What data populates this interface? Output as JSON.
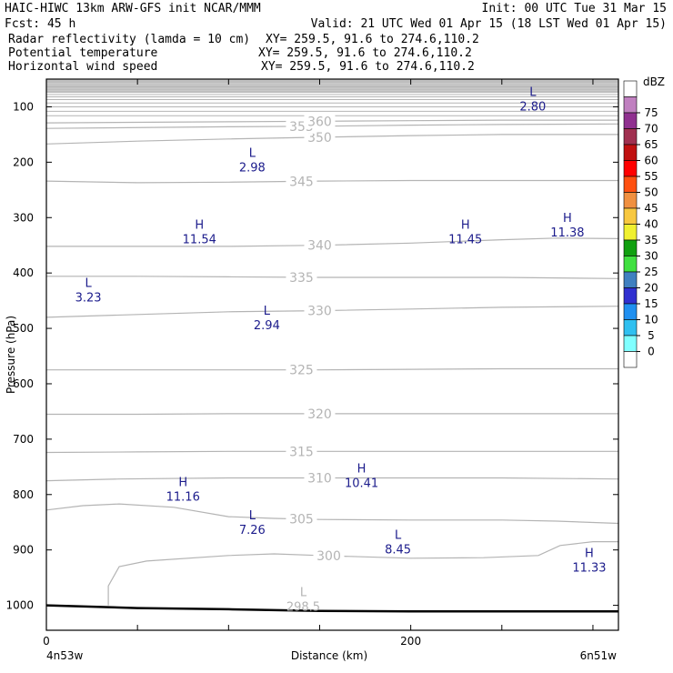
{
  "header": {
    "line1_left": "HAIC-HIWC 13km ARW-GFS init   NCAR/MMM",
    "line1_right": "Init: 00 UTC Tue 31 Mar 15",
    "line2_left": "Fcst:   45 h",
    "line2_right": "Valid: 21 UTC Wed 01 Apr 15 (18 LST Wed 01 Apr 15)",
    "fields": [
      {
        "name": "Radar reflectivity (lamda = 10 cm)",
        "xy": "XY= 259.5, 91.6 to 274.6,110.2",
        "color": "#000000"
      },
      {
        "name": "Potential temperature",
        "xy": "XY= 259.5, 91.6 to 274.6,110.2",
        "color": "#c8c8c8"
      },
      {
        "name": "Horizontal wind speed",
        "xy": "XY= 259.5, 91.6 to 274.6,110.2",
        "color": "#1c1c8c"
      }
    ]
  },
  "footer": {
    "left": "4n53w",
    "right": "6n51w"
  },
  "chart_data": {
    "type": "cross-section",
    "xlabel": "Distance (km)",
    "ylabel": "Pressure (hPa)",
    "xlim": [
      0,
      314
    ],
    "ylim": [
      1045,
      50
    ],
    "xticks": [
      0,
      200
    ],
    "yticks": [
      100,
      200,
      300,
      400,
      500,
      600,
      700,
      800,
      900,
      1000
    ],
    "ground_pressure": [
      [
        0,
        1000
      ],
      [
        50,
        1005
      ],
      [
        100,
        1007
      ],
      [
        150,
        1010
      ],
      [
        200,
        1011
      ],
      [
        250,
        1011
      ],
      [
        314,
        1011
      ]
    ],
    "theta_contours": [
      {
        "value": 300,
        "label_at": 155,
        "points": [
          [
            34,
            1000
          ],
          [
            34,
            965
          ],
          [
            40,
            930
          ],
          [
            55,
            920
          ],
          [
            100,
            910
          ],
          [
            125,
            907
          ],
          [
            150,
            910
          ],
          [
            200,
            915
          ],
          [
            240,
            914
          ],
          [
            270,
            910
          ],
          [
            282,
            892
          ],
          [
            300,
            885
          ],
          [
            314,
            885
          ]
        ]
      },
      {
        "value": 305,
        "points": [
          [
            0,
            828
          ],
          [
            20,
            820
          ],
          [
            40,
            817
          ],
          [
            70,
            823
          ],
          [
            100,
            840
          ],
          [
            125,
            843
          ],
          [
            150,
            845
          ],
          [
            200,
            846
          ],
          [
            250,
            846
          ],
          [
            280,
            848
          ],
          [
            314,
            852
          ]
        ]
      },
      {
        "value": 310,
        "points": [
          [
            0,
            775
          ],
          [
            40,
            772
          ],
          [
            100,
            770
          ],
          [
            150,
            770
          ],
          [
            200,
            770
          ],
          [
            250,
            770
          ],
          [
            314,
            772
          ]
        ]
      },
      {
        "value": 315,
        "points": [
          [
            0,
            724
          ],
          [
            50,
            723
          ],
          [
            100,
            722
          ],
          [
            150,
            722
          ],
          [
            200,
            722
          ],
          [
            250,
            722
          ],
          [
            314,
            722
          ]
        ]
      },
      {
        "value": 320,
        "points": [
          [
            0,
            655
          ],
          [
            50,
            655
          ],
          [
            100,
            654
          ],
          [
            150,
            654
          ],
          [
            200,
            654
          ],
          [
            250,
            654
          ],
          [
            314,
            654
          ]
        ]
      },
      {
        "value": 325,
        "points": [
          [
            0,
            575
          ],
          [
            50,
            575
          ],
          [
            100,
            575
          ],
          [
            150,
            575
          ],
          [
            200,
            574
          ],
          [
            250,
            573
          ],
          [
            314,
            573
          ]
        ]
      },
      {
        "value": 330,
        "points": [
          [
            0,
            480
          ],
          [
            50,
            475
          ],
          [
            100,
            470
          ],
          [
            150,
            468
          ],
          [
            200,
            465
          ],
          [
            250,
            462
          ],
          [
            314,
            460
          ]
        ]
      },
      {
        "value": 335,
        "points": [
          [
            0,
            406
          ],
          [
            50,
            406
          ],
          [
            100,
            407
          ],
          [
            150,
            408
          ],
          [
            200,
            408
          ],
          [
            250,
            408
          ],
          [
            314,
            410
          ]
        ]
      },
      {
        "value": 340,
        "points": [
          [
            0,
            352
          ],
          [
            50,
            352
          ],
          [
            100,
            352
          ],
          [
            150,
            350
          ],
          [
            200,
            346
          ],
          [
            250,
            340
          ],
          [
            280,
            337
          ],
          [
            314,
            338
          ]
        ]
      },
      {
        "value": 345,
        "points": [
          [
            0,
            234
          ],
          [
            50,
            237
          ],
          [
            100,
            236
          ],
          [
            150,
            234
          ],
          [
            200,
            233
          ],
          [
            250,
            233
          ],
          [
            314,
            233
          ]
        ]
      },
      {
        "value": 350,
        "points": [
          [
            0,
            167
          ],
          [
            50,
            162
          ],
          [
            100,
            158
          ],
          [
            150,
            155
          ],
          [
            200,
            152
          ],
          [
            250,
            150
          ],
          [
            314,
            150
          ]
        ]
      },
      {
        "value": 355,
        "points": [
          [
            0,
            139
          ],
          [
            100,
            136
          ],
          [
            150,
            135
          ],
          [
            200,
            133
          ],
          [
            250,
            132
          ],
          [
            314,
            131
          ]
        ]
      },
      {
        "value": 360,
        "points": [
          [
            0,
            129
          ],
          [
            100,
            127
          ],
          [
            150,
            126
          ],
          [
            200,
            125
          ],
          [
            250,
            124
          ],
          [
            314,
            124
          ]
        ]
      }
    ],
    "wind_extrema": [
      {
        "type": "L",
        "value": "2.80",
        "x": 267,
        "p": 80
      },
      {
        "type": "L",
        "value": "2.98",
        "x": 113,
        "p": 190
      },
      {
        "type": "H",
        "value": "11.54",
        "x": 84,
        "p": 320
      },
      {
        "type": "H",
        "value": "11.45",
        "x": 230,
        "p": 320
      },
      {
        "type": "H",
        "value": "11.38",
        "x": 286,
        "p": 308
      },
      {
        "type": "L",
        "value": "3.23",
        "x": 23,
        "p": 425
      },
      {
        "type": "L",
        "value": "2.94",
        "x": 121,
        "p": 475
      },
      {
        "type": "H",
        "value": "10.41",
        "x": 173,
        "p": 760
      },
      {
        "type": "H",
        "value": "11.16",
        "x": 75,
        "p": 785
      },
      {
        "type": "L",
        "value": "7.26",
        "x": 113,
        "p": 845
      },
      {
        "type": "L",
        "value": "8.45",
        "x": 193,
        "p": 880
      },
      {
        "type": "H",
        "value": "11.33",
        "x": 298,
        "p": 913
      }
    ],
    "theta_extrema": [
      {
        "type": "L",
        "value": "298.5",
        "x": 141,
        "p": 1000
      }
    ],
    "colorbar": {
      "title": "dBZ",
      "labels": [
        "75",
        "70",
        "65",
        "60",
        "55",
        "50",
        "45",
        "40",
        "35",
        "30",
        "25",
        "20",
        "15",
        "10",
        "5",
        "0"
      ],
      "colors": [
        "#ffffff",
        "#c080c0",
        "#903090",
        "#a03050",
        "#c01010",
        "#ff0000",
        "#ff5010",
        "#f09040",
        "#f8c840",
        "#f0f030",
        "#10a010",
        "#40e040",
        "#4080c0",
        "#3030d0",
        "#2090f0",
        "#30c0f0",
        "#80ffff",
        "#ffffff"
      ]
    }
  }
}
